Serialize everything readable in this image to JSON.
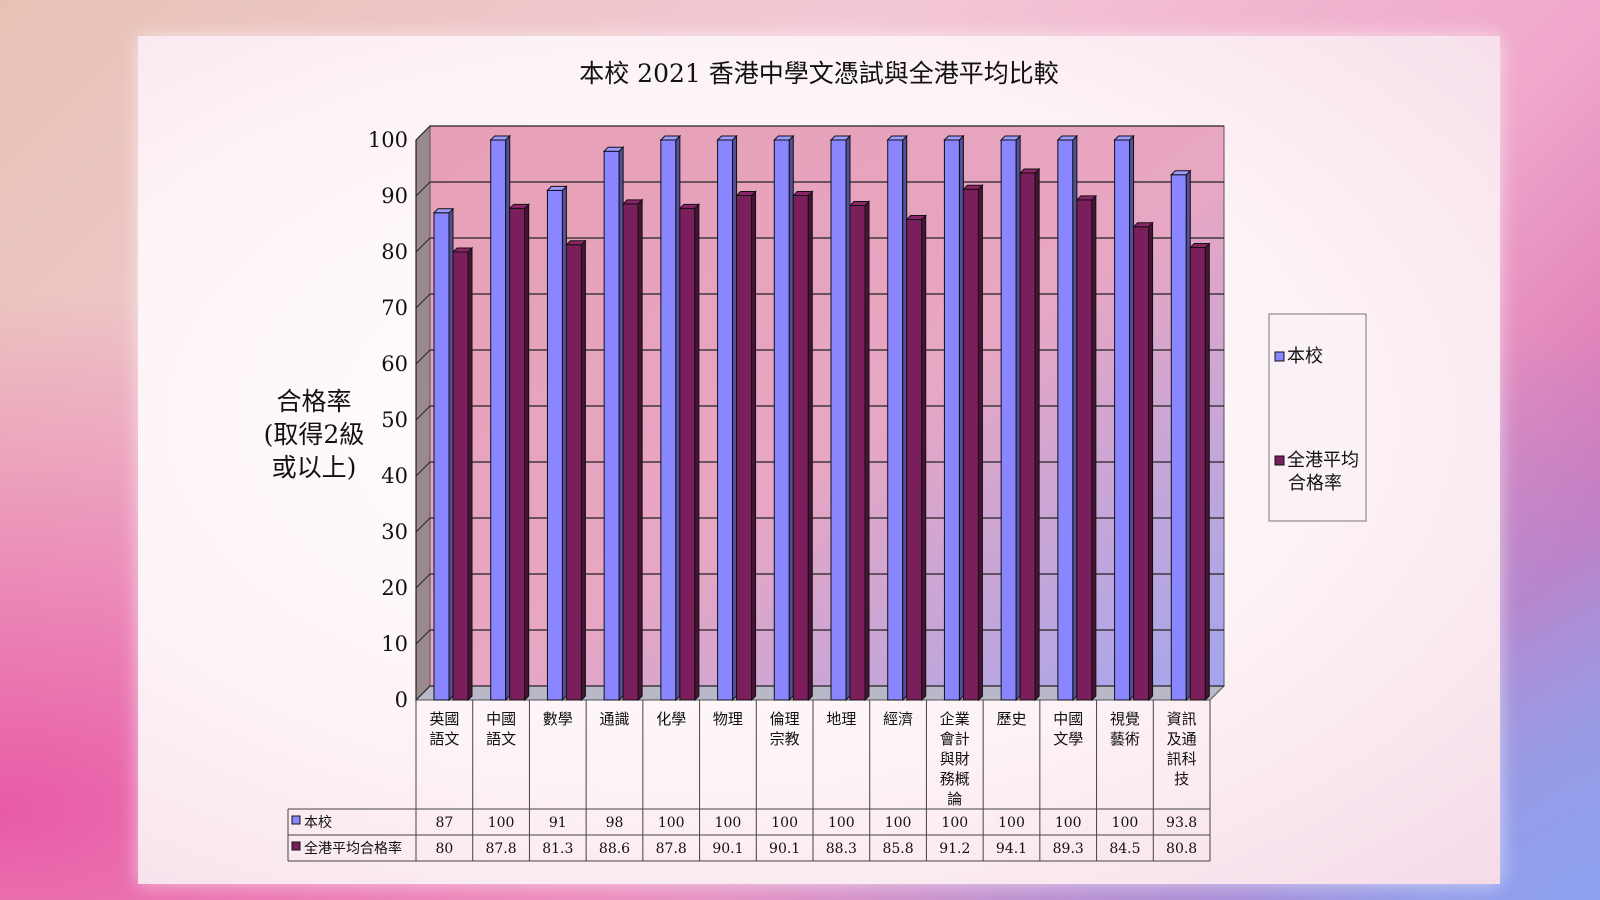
{
  "chart_data": {
    "type": "bar",
    "title": "本校 2021 香港中學文憑試與全港平均比較",
    "ylabel_lines": [
      "合格率",
      "(取得2級",
      "或以上)"
    ],
    "ylim": [
      0,
      100
    ],
    "yticks": [
      0,
      10,
      20,
      30,
      40,
      50,
      60,
      70,
      80,
      90,
      100
    ],
    "grid": true,
    "legend_position": "right",
    "categories": [
      [
        "英國",
        "語文"
      ],
      [
        "中國",
        "語文"
      ],
      [
        "數學"
      ],
      [
        "通識"
      ],
      [
        "化學"
      ],
      [
        "物理"
      ],
      [
        "倫理",
        "宗教"
      ],
      [
        "地理"
      ],
      [
        "經濟"
      ],
      [
        "企業",
        "會計",
        "與財",
        "務概",
        "論"
      ],
      [
        "歷史"
      ],
      [
        "中國",
        "文學"
      ],
      [
        "視覺",
        "藝術"
      ],
      [
        "資訊",
        "及通",
        "訊科",
        "技"
      ]
    ],
    "series": [
      {
        "name": "本校",
        "color": "#8a86ff",
        "values": [
          87,
          100,
          91,
          98,
          100,
          100,
          100,
          100,
          100,
          100,
          100,
          100,
          100,
          93.8
        ],
        "labels": [
          "87",
          "100",
          "91",
          "98",
          "100",
          "100",
          "100",
          "100",
          "100",
          "100",
          "100",
          "100",
          "100",
          "93.8"
        ]
      },
      {
        "name": "全港平均合格率",
        "legend_lines": [
          "全港平均",
          "合格率"
        ],
        "color": "#7a1f5c",
        "values": [
          80,
          87.8,
          81.3,
          88.6,
          87.8,
          90.1,
          90.1,
          88.3,
          85.8,
          91.2,
          94.1,
          89.3,
          84.5,
          80.8
        ],
        "labels": [
          "80",
          "87.8",
          "81.3",
          "88.6",
          "87.8",
          "90.1",
          "90.1",
          "88.3",
          "85.8",
          "91.2",
          "94.1",
          "89.3",
          "84.5",
          "80.8"
        ]
      }
    ]
  }
}
